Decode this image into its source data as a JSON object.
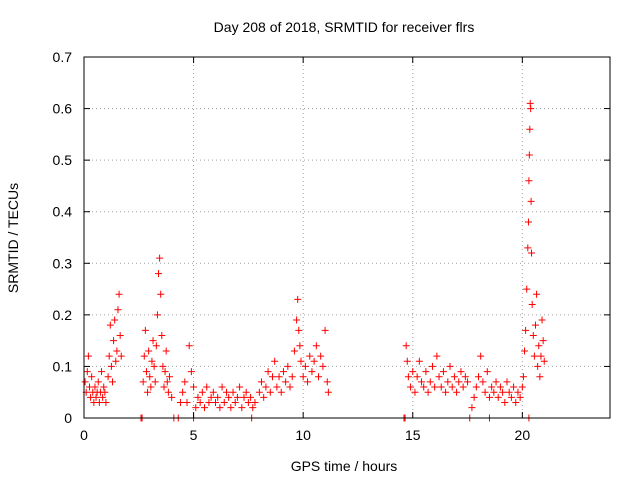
{
  "chart_data": {
    "type": "scatter",
    "title": "Day 208 of 2018, SRMTID for receiver flrs",
    "xlabel": "GPS time / hours",
    "ylabel": "SRMTID / TECUs",
    "xlim": [
      0,
      24
    ],
    "ylim": [
      0,
      0.7
    ],
    "xticks": [
      "0",
      "5",
      "10",
      "15",
      "20"
    ],
    "xtick_values": [
      0,
      5,
      10,
      15,
      20
    ],
    "yticks": [
      "0",
      "0.1",
      "0.2",
      "0.3",
      "0.4",
      "0.5",
      "0.6",
      "0.7"
    ],
    "ytick_values": [
      0,
      0.1,
      0.2,
      0.3,
      0.4,
      0.5,
      0.6,
      0.7
    ],
    "grid": true,
    "marker": "plus",
    "color": "#ff0000",
    "series": [
      {
        "name": "SRMTID",
        "points": [
          [
            0.05,
            0.07
          ],
          [
            0.1,
            0.05
          ],
          [
            0.15,
            0.09
          ],
          [
            0.2,
            0.12
          ],
          [
            0.25,
            0.06
          ],
          [
            0.3,
            0.04
          ],
          [
            0.35,
            0.08
          ],
          [
            0.4,
            0.05
          ],
          [
            0.45,
            0.03
          ],
          [
            0.5,
            0.06
          ],
          [
            0.55,
            0.04
          ],
          [
            0.6,
            0.05
          ],
          [
            0.65,
            0.07
          ],
          [
            0.7,
            0.03
          ],
          [
            0.75,
            0.05
          ],
          [
            0.8,
            0.09
          ],
          [
            0.85,
            0.04
          ],
          [
            0.9,
            0.06
          ],
          [
            0.95,
            0.05
          ],
          [
            1.0,
            0.03
          ],
          [
            1.1,
            0.08
          ],
          [
            1.15,
            0.12
          ],
          [
            1.2,
            0.18
          ],
          [
            1.25,
            0.1
          ],
          [
            1.3,
            0.07
          ],
          [
            1.35,
            0.15
          ],
          [
            1.4,
            0.19
          ],
          [
            1.45,
            0.11
          ],
          [
            1.5,
            0.13
          ],
          [
            1.55,
            0.21
          ],
          [
            1.6,
            0.24
          ],
          [
            1.65,
            0.16
          ],
          [
            1.7,
            0.12
          ],
          [
            2.7,
            0.07
          ],
          [
            2.75,
            0.12
          ],
          [
            2.8,
            0.17
          ],
          [
            2.85,
            0.09
          ],
          [
            2.9,
            0.05
          ],
          [
            2.95,
            0.13
          ],
          [
            3.0,
            0.08
          ],
          [
            3.05,
            0.06
          ],
          [
            3.1,
            0.11
          ],
          [
            3.15,
            0.15
          ],
          [
            3.2,
            0.1
          ],
          [
            3.25,
            0.07
          ],
          [
            3.3,
            0.14
          ],
          [
            3.35,
            0.2
          ],
          [
            3.4,
            0.28
          ],
          [
            3.45,
            0.31
          ],
          [
            3.5,
            0.24
          ],
          [
            3.55,
            0.16
          ],
          [
            3.6,
            0.1
          ],
          [
            3.65,
            0.06
          ],
          [
            3.7,
            0.09
          ],
          [
            3.75,
            0.13
          ],
          [
            3.8,
            0.07
          ],
          [
            3.85,
            0.05
          ],
          [
            3.9,
            0.08
          ],
          [
            4.0,
            0.04
          ],
          [
            4.4,
            0.03
          ],
          [
            4.5,
            0.05
          ],
          [
            4.6,
            0.07
          ],
          [
            4.7,
            0.03
          ],
          [
            4.8,
            0.14
          ],
          [
            4.9,
            0.09
          ],
          [
            5.0,
            0.06
          ],
          [
            5.1,
            0.02
          ],
          [
            5.2,
            0.04
          ],
          [
            5.3,
            0.03
          ],
          [
            5.4,
            0.05
          ],
          [
            5.5,
            0.02
          ],
          [
            5.6,
            0.06
          ],
          [
            5.7,
            0.03
          ],
          [
            5.8,
            0.04
          ],
          [
            5.9,
            0.05
          ],
          [
            6.0,
            0.03
          ],
          [
            6.1,
            0.04
          ],
          [
            6.2,
            0.02
          ],
          [
            6.3,
            0.06
          ],
          [
            6.4,
            0.03
          ],
          [
            6.5,
            0.05
          ],
          [
            6.6,
            0.04
          ],
          [
            6.7,
            0.02
          ],
          [
            6.8,
            0.05
          ],
          [
            6.9,
            0.03
          ],
          [
            7.0,
            0.04
          ],
          [
            7.1,
            0.06
          ],
          [
            7.2,
            0.02
          ],
          [
            7.3,
            0.04
          ],
          [
            7.4,
            0.05
          ],
          [
            7.5,
            0.03
          ],
          [
            7.6,
            0.04
          ],
          [
            7.7,
            0.02
          ],
          [
            7.8,
            0.03
          ],
          [
            8.0,
            0.05
          ],
          [
            8.1,
            0.07
          ],
          [
            8.2,
            0.04
          ],
          [
            8.3,
            0.06
          ],
          [
            8.4,
            0.09
          ],
          [
            8.5,
            0.05
          ],
          [
            8.6,
            0.08
          ],
          [
            8.7,
            0.11
          ],
          [
            8.8,
            0.06
          ],
          [
            8.9,
            0.08
          ],
          [
            9.0,
            0.05
          ],
          [
            9.1,
            0.09
          ],
          [
            9.2,
            0.07
          ],
          [
            9.3,
            0.1
          ],
          [
            9.4,
            0.06
          ],
          [
            9.5,
            0.08
          ],
          [
            9.6,
            0.13
          ],
          [
            9.7,
            0.19
          ],
          [
            9.75,
            0.23
          ],
          [
            9.8,
            0.17
          ],
          [
            9.85,
            0.14
          ],
          [
            9.9,
            0.11
          ],
          [
            10.0,
            0.08
          ],
          [
            10.1,
            0.1
          ],
          [
            10.2,
            0.07
          ],
          [
            10.3,
            0.12
          ],
          [
            10.4,
            0.09
          ],
          [
            10.5,
            0.11
          ],
          [
            10.6,
            0.14
          ],
          [
            10.7,
            0.08
          ],
          [
            10.8,
            0.12
          ],
          [
            10.9,
            0.1
          ],
          [
            11.0,
            0.17
          ],
          [
            11.1,
            0.07
          ],
          [
            11.15,
            0.05
          ],
          [
            14.7,
            0.14
          ],
          [
            14.75,
            0.11
          ],
          [
            14.8,
            0.08
          ],
          [
            14.9,
            0.06
          ],
          [
            15.0,
            0.09
          ],
          [
            15.1,
            0.05
          ],
          [
            15.2,
            0.08
          ],
          [
            15.3,
            0.11
          ],
          [
            15.4,
            0.07
          ],
          [
            15.5,
            0.06
          ],
          [
            15.6,
            0.09
          ],
          [
            15.7,
            0.05
          ],
          [
            15.8,
            0.07
          ],
          [
            15.9,
            0.1
          ],
          [
            16.0,
            0.06
          ],
          [
            16.1,
            0.12
          ],
          [
            16.2,
            0.08
          ],
          [
            16.3,
            0.06
          ],
          [
            16.4,
            0.09
          ],
          [
            16.5,
            0.05
          ],
          [
            16.6,
            0.07
          ],
          [
            16.7,
            0.1
          ],
          [
            16.8,
            0.06
          ],
          [
            16.9,
            0.08
          ],
          [
            17.0,
            0.05
          ],
          [
            17.1,
            0.07
          ],
          [
            17.2,
            0.09
          ],
          [
            17.3,
            0.06
          ],
          [
            17.4,
            0.08
          ],
          [
            17.5,
            0.07
          ],
          [
            17.7,
            0.02
          ],
          [
            17.8,
            0.04
          ],
          [
            17.9,
            0.06
          ],
          [
            18.0,
            0.08
          ],
          [
            18.1,
            0.12
          ],
          [
            18.2,
            0.07
          ],
          [
            18.3,
            0.05
          ],
          [
            18.4,
            0.09
          ],
          [
            18.5,
            0.04
          ],
          [
            18.6,
            0.06
          ],
          [
            18.7,
            0.05
          ],
          [
            18.8,
            0.07
          ],
          [
            18.9,
            0.04
          ],
          [
            19.0,
            0.06
          ],
          [
            19.1,
            0.05
          ],
          [
            19.2,
            0.03
          ],
          [
            19.3,
            0.07
          ],
          [
            19.4,
            0.05
          ],
          [
            19.5,
            0.04
          ],
          [
            19.6,
            0.06
          ],
          [
            19.7,
            0.03
          ],
          [
            19.8,
            0.05
          ],
          [
            19.9,
            0.04
          ],
          [
            20.0,
            0.06
          ],
          [
            20.05,
            0.08
          ],
          [
            20.1,
            0.13
          ],
          [
            20.15,
            0.17
          ],
          [
            20.2,
            0.25
          ],
          [
            20.25,
            0.33
          ],
          [
            20.28,
            0.38
          ],
          [
            20.3,
            0.46
          ],
          [
            20.32,
            0.51
          ],
          [
            20.34,
            0.56
          ],
          [
            20.36,
            0.61
          ],
          [
            20.38,
            0.6
          ],
          [
            20.4,
            0.42
          ],
          [
            20.42,
            0.32
          ],
          [
            20.45,
            0.22
          ],
          [
            20.5,
            0.16
          ],
          [
            20.55,
            0.12
          ],
          [
            20.6,
            0.18
          ],
          [
            20.65,
            0.24
          ],
          [
            20.7,
            0.1
          ],
          [
            20.75,
            0.14
          ],
          [
            20.8,
            0.08
          ],
          [
            20.85,
            0.12
          ],
          [
            20.9,
            0.19
          ],
          [
            20.95,
            0.15
          ],
          [
            21.0,
            0.11
          ],
          [
            2.6,
            0.0
          ],
          [
            2.65,
            0.0
          ],
          [
            4.1,
            0.0
          ],
          [
            4.3,
            0.0
          ],
          [
            5.0,
            0.0
          ],
          [
            7.65,
            0.0
          ],
          [
            14.6,
            0.0
          ],
          [
            14.65,
            0.0
          ],
          [
            17.6,
            0.0
          ],
          [
            18.5,
            0.0
          ],
          [
            20.3,
            0.0
          ]
        ]
      }
    ]
  }
}
